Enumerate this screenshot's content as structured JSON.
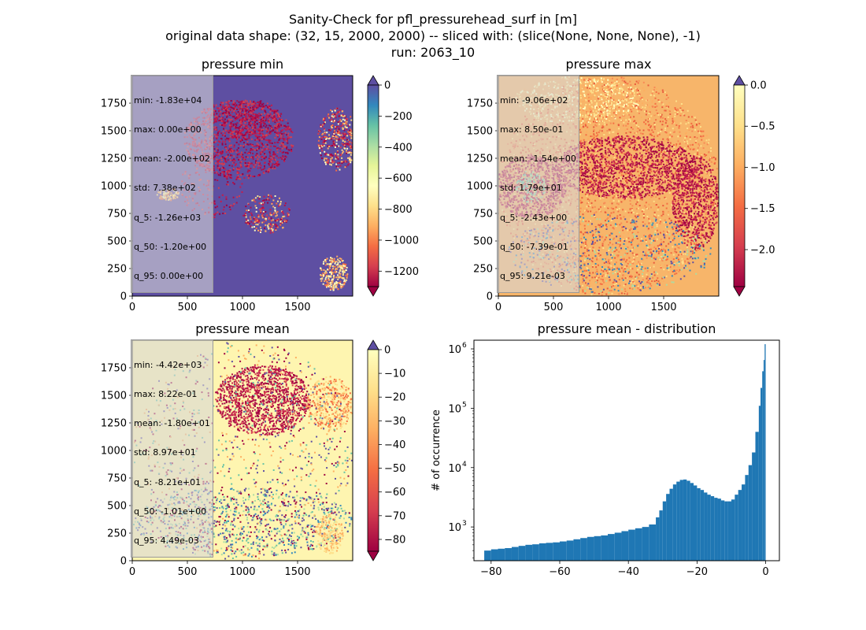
{
  "figure": {
    "suptitle_lines": [
      "Sanity-Check for pfl_pressurehead_surf in [m]",
      "original data shape: (32, 15, 2000, 2000) -- sliced with: (slice(None, None, None), -1)",
      "run: 2063_10"
    ]
  },
  "panels": {
    "min": {
      "title": "pressure min",
      "stats": [
        "min: -1.83e+04",
        "max: 0.00e+00",
        "mean: -2.00e+02",
        "std: 7.38e+02",
        "q_5: -1.26e+03",
        "q_50: -1.20e+00",
        "q_95: 0.00e+00"
      ],
      "cbar_ticks": [
        "0",
        "−200",
        "−400",
        "−600",
        "−800",
        "−1000",
        "−1200"
      ]
    },
    "max": {
      "title": "pressure max",
      "stats": [
        "min: -9.06e+02",
        "max: 8.50e-01",
        "mean: -1.54e+00",
        "std: 1.79e+01",
        "q_5: -2.43e+00",
        "q_50: -7.39e-01",
        "q_95: 9.21e-03"
      ],
      "cbar_ticks": [
        "0.0",
        "−0.5",
        "−1.0",
        "−1.5",
        "−2.0"
      ]
    },
    "mean": {
      "title": "pressure mean",
      "stats": [
        "min: -4.42e+03",
        "max: 8.22e-01",
        "mean: -1.80e+01",
        "std: 8.97e+01",
        "q_5: -8.21e+01",
        "q_50: -1.01e+00",
        "q_95: 4.49e-03"
      ],
      "cbar_ticks": [
        "0",
        "−10",
        "−20",
        "−30",
        "−40",
        "−50",
        "−60",
        "−70",
        "−80"
      ]
    },
    "hist": {
      "title": "pressure mean - distribution",
      "ylabel": "# of occurrence",
      "xticks": [
        "−80",
        "−60",
        "−40",
        "−20",
        "0"
      ],
      "yticks": [
        "10",
        "10",
        "10",
        "10"
      ],
      "yexps": [
        "3",
        "4",
        "5",
        "6"
      ]
    }
  },
  "map_axes": {
    "xticks": [
      "0",
      "500",
      "1000",
      "1500"
    ],
    "yticks": [
      "0",
      "250",
      "500",
      "750",
      "1000",
      "1250",
      "1500",
      "1750"
    ]
  },
  "chart_data": [
    {
      "type": "heatmap",
      "title": "pressure min",
      "x_range": [
        0,
        2000
      ],
      "y_range": [
        0,
        2000
      ],
      "colormap": "Spectral",
      "clim": [
        -1300,
        0
      ],
      "colorbar_ticks": [
        0,
        -200,
        -400,
        -600,
        -800,
        -1000,
        -1200
      ],
      "colorbar_extend": "both"
    },
    {
      "type": "heatmap",
      "title": "pressure max",
      "x_range": [
        0,
        2000
      ],
      "y_range": [
        0,
        2000
      ],
      "colormap": "Spectral",
      "clim": [
        -2.45,
        0.0
      ],
      "colorbar_ticks": [
        0.0,
        -0.5,
        -1.0,
        -1.5,
        -2.0
      ],
      "colorbar_extend": "both"
    },
    {
      "type": "heatmap",
      "title": "pressure mean",
      "x_range": [
        0,
        2000
      ],
      "y_range": [
        0,
        2000
      ],
      "colormap": "Spectral",
      "clim": [
        -85,
        0
      ],
      "colorbar_ticks": [
        0,
        -10,
        -20,
        -30,
        -40,
        -50,
        -60,
        -70,
        -80
      ],
      "colorbar_extend": "both"
    },
    {
      "type": "bar",
      "title": "pressure mean - distribution",
      "ylabel": "# of occurrence",
      "yscale": "log",
      "xlim": [
        -85,
        4
      ],
      "ylim": [
        270,
        1400000
      ],
      "color": "#1f77b4",
      "x": [
        -82,
        -80,
        -78,
        -76,
        -74,
        -72,
        -70,
        -68,
        -66,
        -64,
        -62,
        -60,
        -58,
        -56,
        -54,
        -52,
        -50,
        -48,
        -46,
        -44,
        -42,
        -40,
        -38,
        -36,
        -34,
        -32,
        -31,
        -30,
        -29,
        -28,
        -27,
        -26,
        -25,
        -24,
        -23,
        -22,
        -21,
        -20,
        -19,
        -18,
        -17,
        -16,
        -15,
        -14,
        -13,
        -12,
        -11,
        -10,
        -9,
        -8,
        -7,
        -6,
        -5,
        -4,
        -3,
        -2,
        -1.5,
        -1,
        -0.6,
        -0.3
      ],
      "y": [
        400,
        420,
        430,
        440,
        460,
        480,
        500,
        510,
        530,
        540,
        550,
        570,
        590,
        620,
        650,
        680,
        700,
        720,
        760,
        800,
        850,
        900,
        950,
        1000,
        1100,
        1450,
        1900,
        2700,
        3600,
        4400,
        5200,
        5800,
        6200,
        6300,
        6000,
        5500,
        5000,
        4500,
        4200,
        3800,
        3500,
        3300,
        3100,
        3000,
        2800,
        2700,
        2700,
        2900,
        3500,
        4200,
        5200,
        7500,
        11000,
        18000,
        40000,
        110000,
        220000,
        420000,
        650000,
        1200000
      ]
    }
  ]
}
